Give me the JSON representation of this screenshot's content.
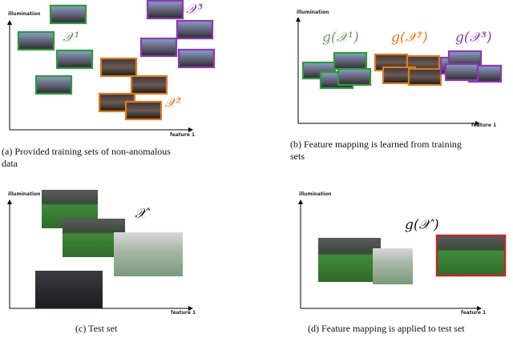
{
  "panels": [
    {
      "y_axis": "illumination",
      "x_axis": "feature 1",
      "labels": [
        "𝒳¹",
        "𝒳²",
        "𝒳³"
      ],
      "caption": [
        "(a) Provided training sets of non-anomalous",
        "data"
      ]
    },
    {
      "y_axis": "illumination",
      "x_axis": "feature 1",
      "labels": [
        "g(𝒳¹)",
        "g(𝒳²)",
        "g(𝒳³)"
      ],
      "caption": [
        "(b) Feature mapping is learned from training",
        "sets"
      ]
    },
    {
      "y_axis": "illumination",
      "x_axis": "feature 1",
      "labels": [
        "𝒳′"
      ],
      "caption": [
        "(c) Test set"
      ]
    },
    {
      "y_axis": "illumination",
      "x_axis": "feature 1",
      "labels": [
        "g(𝒳′)"
      ],
      "caption": [
        "(d) Feature mapping is applied to test set"
      ]
    }
  ]
}
